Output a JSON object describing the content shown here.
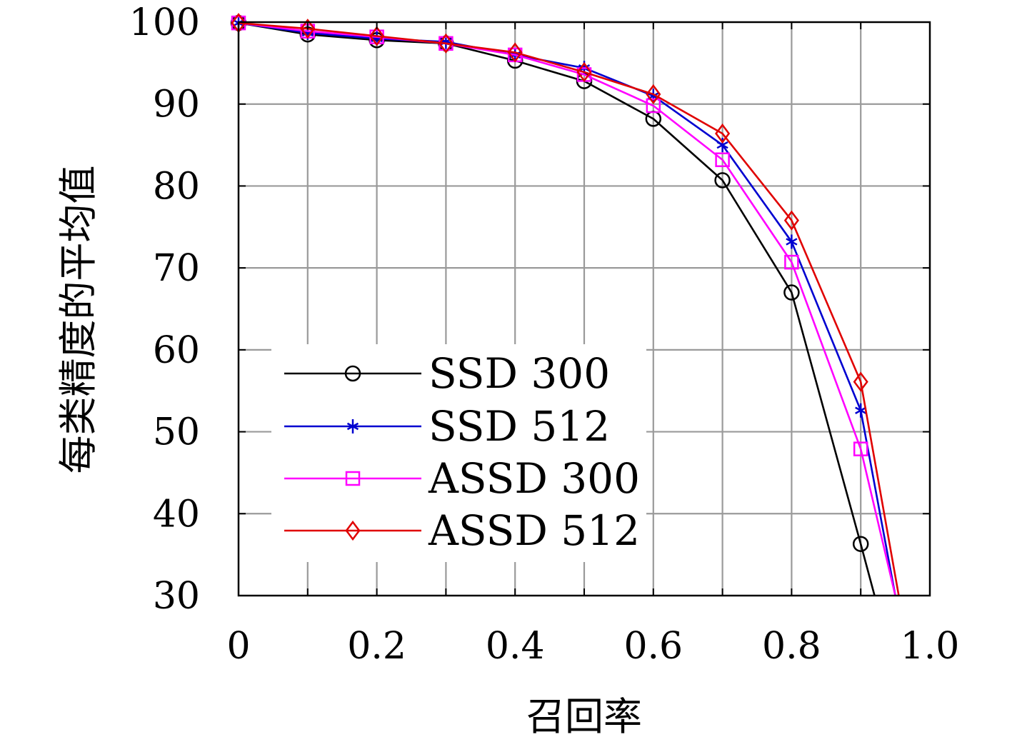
{
  "chart_data": {
    "type": "line",
    "title": "",
    "xlabel": "召回率",
    "ylabel": "每类精度的平均值",
    "xlim": [
      0,
      1.0
    ],
    "ylim": [
      30,
      100
    ],
    "grid": true,
    "legend_position": "lower-left",
    "x_tick_labels": [
      "0",
      "0.2",
      "0.4",
      "0.6",
      "0.8",
      "1.0"
    ],
    "y_tick_labels": [
      "30",
      "40",
      "50",
      "60",
      "70",
      "80",
      "90",
      "100"
    ],
    "series": [
      {
        "name": "SSD 300",
        "color": "#000000",
        "marker": "circle",
        "x": [
          0,
          0.1,
          0.2,
          0.3,
          0.4,
          0.5,
          0.6,
          0.7,
          0.8,
          0.9,
          0.92
        ],
        "y": [
          99.9,
          98.5,
          97.8,
          97.4,
          95.3,
          92.8,
          88.2,
          80.7,
          67.0,
          36.3,
          30.0
        ]
      },
      {
        "name": "SSD 512",
        "color": "#0000d0",
        "marker": "star",
        "x": [
          0,
          0.1,
          0.2,
          0.3,
          0.4,
          0.5,
          0.6,
          0.7,
          0.8,
          0.9,
          0.95
        ],
        "y": [
          99.9,
          98.7,
          98.0,
          97.6,
          96.0,
          94.4,
          91.0,
          85.0,
          73.2,
          52.6,
          30.0
        ]
      },
      {
        "name": "ASSD 300",
        "color": "#ff00ff",
        "marker": "square",
        "x": [
          0,
          0.1,
          0.2,
          0.3,
          0.4,
          0.5,
          0.6,
          0.7,
          0.8,
          0.9,
          0.95
        ],
        "y": [
          99.9,
          98.9,
          98.2,
          97.4,
          96.0,
          93.6,
          89.8,
          83.2,
          70.7,
          47.9,
          30.0
        ]
      },
      {
        "name": "ASSD 512",
        "color": "#e00000",
        "marker": "diamond",
        "x": [
          0,
          0.1,
          0.2,
          0.3,
          0.4,
          0.5,
          0.6,
          0.7,
          0.8,
          0.9,
          0.955
        ],
        "y": [
          99.9,
          99.2,
          98.3,
          97.4,
          96.3,
          93.9,
          91.2,
          86.4,
          75.8,
          56.1,
          30.0
        ]
      }
    ]
  }
}
